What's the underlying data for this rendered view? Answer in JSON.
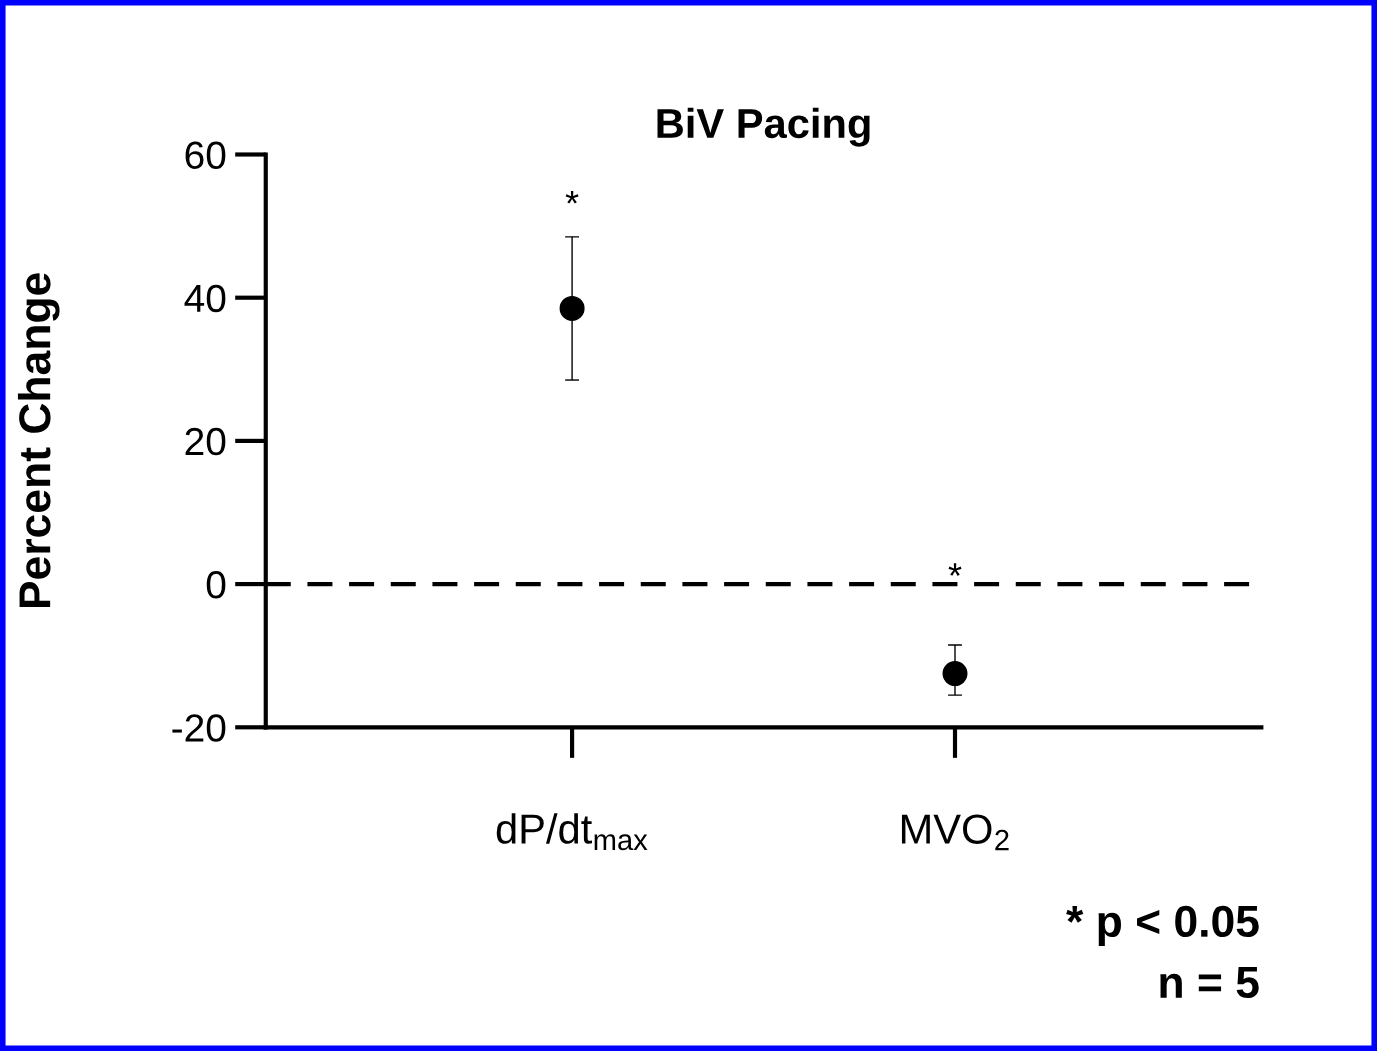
{
  "chart_data": {
    "type": "scatter",
    "title": "BiV Pacing",
    "ylabel": "Percent Change",
    "categories": [
      "dP/dt$_{max}$",
      "MVO$_{2}$"
    ],
    "values": [
      38.5,
      -12.5
    ],
    "errors": [
      [
        28.5,
        48.5
      ],
      [
        -15.5,
        -8.5
      ]
    ],
    "color": "#000000",
    "marker": "circle",
    "ylim": [
      -20,
      60
    ],
    "yticks": [
      -20,
      0,
      20,
      40,
      60
    ],
    "ref_lines": [
      {
        "axis": "y",
        "value": 0,
        "line_style": "dashed",
        "color": "#000000"
      }
    ],
    "annotations": [
      "*",
      "*",
      "* p < 0.05",
      "n = 5"
    ],
    "grid": false,
    "legend": false
  }
}
